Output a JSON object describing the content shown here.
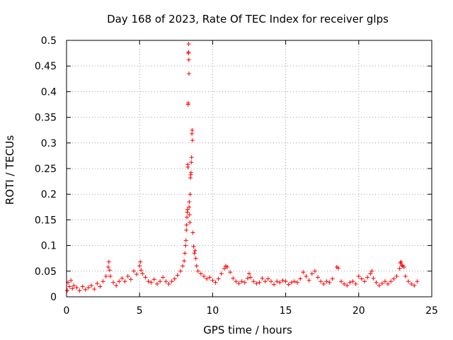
{
  "chart_data": {
    "type": "scatter",
    "title": "Day 168 of 2023, Rate Of TEC Index for receiver glps",
    "xlabel": "GPS time / hours",
    "ylabel": "ROTI / TECUs",
    "xlim": [
      0,
      25
    ],
    "ylim": [
      0,
      0.5
    ],
    "xticks": [
      0,
      5,
      10,
      15,
      20,
      25
    ],
    "xtick_labels": [
      "0",
      "5",
      "10",
      "15",
      "20",
      "25"
    ],
    "yticks": [
      0,
      0.05,
      0.1,
      0.15,
      0.2,
      0.25,
      0.3,
      0.35,
      0.4,
      0.45,
      0.5
    ],
    "ytick_labels": [
      "0",
      "0.05",
      "0.1",
      "0.15",
      "0.2",
      "0.25",
      "0.3",
      "0.35",
      "0.4",
      "0.45",
      "0.5"
    ],
    "grid": true,
    "marker": "+",
    "series": [
      {
        "color": "#ff0000",
        "points": [
          [
            0.05,
            0.012
          ],
          [
            0.1,
            0.028
          ],
          [
            0.2,
            0.02
          ],
          [
            0.3,
            0.032
          ],
          [
            0.4,
            0.016
          ],
          [
            0.5,
            0.022
          ],
          [
            0.7,
            0.018
          ],
          [
            0.9,
            0.012
          ],
          [
            1.1,
            0.02
          ],
          [
            1.3,
            0.014
          ],
          [
            1.5,
            0.018
          ],
          [
            1.7,
            0.022
          ],
          [
            1.9,
            0.015
          ],
          [
            2.1,
            0.026
          ],
          [
            2.3,
            0.02
          ],
          [
            2.5,
            0.03
          ],
          [
            2.7,
            0.04
          ],
          [
            2.85,
            0.058
          ],
          [
            2.9,
            0.068
          ],
          [
            2.95,
            0.052
          ],
          [
            3.0,
            0.04
          ],
          [
            3.2,
            0.028
          ],
          [
            3.4,
            0.022
          ],
          [
            3.6,
            0.03
          ],
          [
            3.8,
            0.036
          ],
          [
            4.0,
            0.03
          ],
          [
            4.2,
            0.04
          ],
          [
            4.4,
            0.034
          ],
          [
            4.6,
            0.05
          ],
          [
            4.8,
            0.044
          ],
          [
            5.0,
            0.06
          ],
          [
            5.05,
            0.068
          ],
          [
            5.1,
            0.052
          ],
          [
            5.2,
            0.045
          ],
          [
            5.4,
            0.038
          ],
          [
            5.6,
            0.03
          ],
          [
            5.8,
            0.028
          ],
          [
            6.0,
            0.034
          ],
          [
            6.2,
            0.025
          ],
          [
            6.4,
            0.03
          ],
          [
            6.6,
            0.038
          ],
          [
            6.8,
            0.03
          ],
          [
            7.0,
            0.025
          ],
          [
            7.2,
            0.03
          ],
          [
            7.4,
            0.035
          ],
          [
            7.6,
            0.042
          ],
          [
            7.8,
            0.05
          ],
          [
            7.95,
            0.06
          ],
          [
            8.05,
            0.07
          ],
          [
            8.1,
            0.085
          ],
          [
            8.15,
            0.1
          ],
          [
            8.18,
            0.11
          ],
          [
            8.2,
            0.13
          ],
          [
            8.22,
            0.14
          ],
          [
            8.24,
            0.155
          ],
          [
            8.26,
            0.165
          ],
          [
            8.28,
            0.17
          ],
          [
            8.3,
            0.258
          ],
          [
            8.31,
            0.253
          ],
          [
            8.32,
            0.375
          ],
          [
            8.33,
            0.378
          ],
          [
            8.34,
            0.475
          ],
          [
            8.35,
            0.477
          ],
          [
            8.36,
            0.493
          ],
          [
            8.37,
            0.462
          ],
          [
            8.38,
            0.435
          ],
          [
            8.39,
            0.175
          ],
          [
            8.4,
            0.185
          ],
          [
            8.42,
            0.16
          ],
          [
            8.44,
            0.145
          ],
          [
            8.46,
            0.2
          ],
          [
            8.48,
            0.232
          ],
          [
            8.5,
            0.238
          ],
          [
            8.52,
            0.242
          ],
          [
            8.54,
            0.262
          ],
          [
            8.56,
            0.272
          ],
          [
            8.58,
            0.318
          ],
          [
            8.6,
            0.325
          ],
          [
            8.62,
            0.305
          ],
          [
            8.65,
            0.125
          ],
          [
            8.7,
            0.098
          ],
          [
            8.75,
            0.085
          ],
          [
            8.8,
            0.09
          ],
          [
            8.85,
            0.075
          ],
          [
            8.9,
            0.06
          ],
          [
            9.0,
            0.05
          ],
          [
            9.2,
            0.045
          ],
          [
            9.4,
            0.04
          ],
          [
            9.6,
            0.035
          ],
          [
            9.8,
            0.038
          ],
          [
            10.0,
            0.032
          ],
          [
            10.2,
            0.028
          ],
          [
            10.4,
            0.035
          ],
          [
            10.6,
            0.045
          ],
          [
            10.8,
            0.055
          ],
          [
            10.9,
            0.06
          ],
          [
            11.0,
            0.058
          ],
          [
            11.2,
            0.048
          ],
          [
            11.4,
            0.036
          ],
          [
            11.6,
            0.03
          ],
          [
            11.8,
            0.026
          ],
          [
            12.0,
            0.03
          ],
          [
            12.2,
            0.028
          ],
          [
            12.4,
            0.036
          ],
          [
            12.5,
            0.045
          ],
          [
            12.6,
            0.038
          ],
          [
            12.8,
            0.03
          ],
          [
            13.0,
            0.026
          ],
          [
            13.2,
            0.028
          ],
          [
            13.4,
            0.036
          ],
          [
            13.6,
            0.03
          ],
          [
            13.8,
            0.035
          ],
          [
            14.0,
            0.03
          ],
          [
            14.2,
            0.024
          ],
          [
            14.4,
            0.03
          ],
          [
            14.6,
            0.028
          ],
          [
            14.8,
            0.032
          ],
          [
            15.0,
            0.03
          ],
          [
            15.2,
            0.024
          ],
          [
            15.4,
            0.028
          ],
          [
            15.6,
            0.03
          ],
          [
            15.8,
            0.028
          ],
          [
            16.0,
            0.035
          ],
          [
            16.2,
            0.048
          ],
          [
            16.4,
            0.04
          ],
          [
            16.6,
            0.032
          ],
          [
            16.8,
            0.045
          ],
          [
            17.0,
            0.05
          ],
          [
            17.2,
            0.038
          ],
          [
            17.4,
            0.03
          ],
          [
            17.6,
            0.025
          ],
          [
            17.8,
            0.03
          ],
          [
            18.0,
            0.028
          ],
          [
            18.2,
            0.035
          ],
          [
            18.5,
            0.058
          ],
          [
            18.6,
            0.056
          ],
          [
            18.8,
            0.03
          ],
          [
            19.0,
            0.025
          ],
          [
            19.2,
            0.022
          ],
          [
            19.4,
            0.028
          ],
          [
            19.6,
            0.03
          ],
          [
            19.8,
            0.025
          ],
          [
            20.0,
            0.04
          ],
          [
            20.2,
            0.035
          ],
          [
            20.4,
            0.03
          ],
          [
            20.6,
            0.038
          ],
          [
            20.8,
            0.045
          ],
          [
            20.9,
            0.05
          ],
          [
            21.0,
            0.036
          ],
          [
            21.2,
            0.028
          ],
          [
            21.4,
            0.022
          ],
          [
            21.6,
            0.026
          ],
          [
            21.8,
            0.03
          ],
          [
            22.0,
            0.025
          ],
          [
            22.2,
            0.03
          ],
          [
            22.4,
            0.035
          ],
          [
            22.6,
            0.04
          ],
          [
            22.8,
            0.055
          ],
          [
            22.85,
            0.066
          ],
          [
            22.9,
            0.068
          ],
          [
            22.95,
            0.062
          ],
          [
            23.0,
            0.06
          ],
          [
            23.1,
            0.058
          ],
          [
            23.2,
            0.04
          ],
          [
            23.4,
            0.03
          ],
          [
            23.6,
            0.025
          ],
          [
            23.8,
            0.022
          ],
          [
            24.0,
            0.03
          ]
        ]
      }
    ]
  }
}
